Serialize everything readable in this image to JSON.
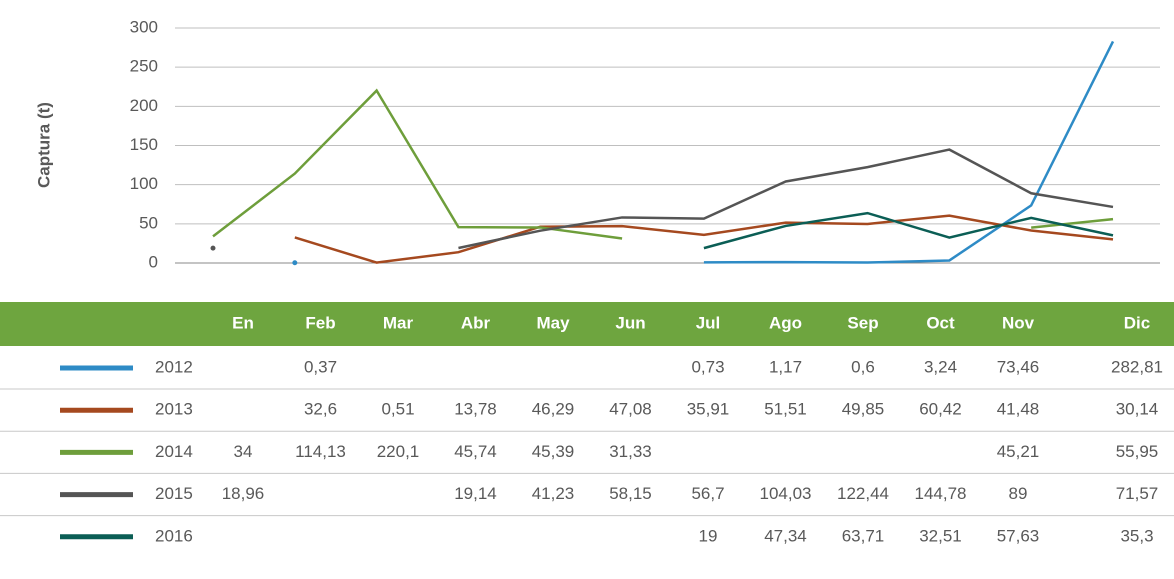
{
  "chart_data": {
    "type": "line",
    "y_label": "Captura (t)",
    "categories": [
      "En",
      "Feb",
      "Mar",
      "Abr",
      "May",
      "Jun",
      "Jul",
      "Ago",
      "Sep",
      "Oct",
      "Nov",
      "Dic"
    ],
    "ylim": [
      0,
      300
    ],
    "yticks": [
      0,
      50,
      100,
      150,
      200,
      250,
      300
    ],
    "grid": true,
    "series": [
      {
        "name": "2012",
        "color": "#2e8bc6",
        "values": [
          null,
          0.37,
          null,
          null,
          null,
          null,
          0.73,
          1.17,
          0.6,
          3.24,
          73.46,
          282.81
        ],
        "value_labels": [
          null,
          "0,37",
          null,
          null,
          null,
          null,
          "0,73",
          "1,17",
          "0,6",
          "3,24",
          "73,46",
          "282,81"
        ]
      },
      {
        "name": "2013",
        "color": "#a5491f",
        "values": [
          null,
          32.6,
          0.51,
          13.78,
          46.29,
          47.08,
          35.91,
          51.51,
          49.85,
          60.42,
          41.48,
          30.14
        ],
        "value_labels": [
          null,
          "32,6",
          "0,51",
          "13,78",
          "46,29",
          "47,08",
          "35,91",
          "51,51",
          "49,85",
          "60,42",
          "41,48",
          "30,14"
        ]
      },
      {
        "name": "2014",
        "color": "#6e9e3b",
        "values": [
          34,
          114.13,
          220.1,
          45.74,
          45.39,
          31.33,
          null,
          null,
          null,
          null,
          45.21,
          55.95
        ],
        "value_labels": [
          "34",
          "114,13",
          "220,1",
          "45,74",
          "45,39",
          "31,33",
          null,
          null,
          null,
          null,
          "45,21",
          "55,95"
        ]
      },
      {
        "name": "2015",
        "color": "#555555",
        "values": [
          18.96,
          null,
          null,
          19.14,
          41.23,
          58.15,
          56.7,
          104.03,
          122.44,
          144.78,
          89,
          71.57
        ],
        "value_labels": [
          "18,96",
          null,
          null,
          "19,14",
          "41,23",
          "58,15",
          "56,7",
          "104,03",
          "122,44",
          "144,78",
          "89",
          "71,57"
        ]
      },
      {
        "name": "2016",
        "color": "#0b5e55",
        "values": [
          null,
          null,
          null,
          null,
          null,
          null,
          19,
          47.34,
          63.71,
          32.51,
          57.63,
          35.3
        ],
        "value_labels": [
          null,
          null,
          null,
          null,
          null,
          null,
          "19",
          "47,34",
          "63,71",
          "32,51",
          "57,63",
          "35,3"
        ]
      }
    ]
  }
}
